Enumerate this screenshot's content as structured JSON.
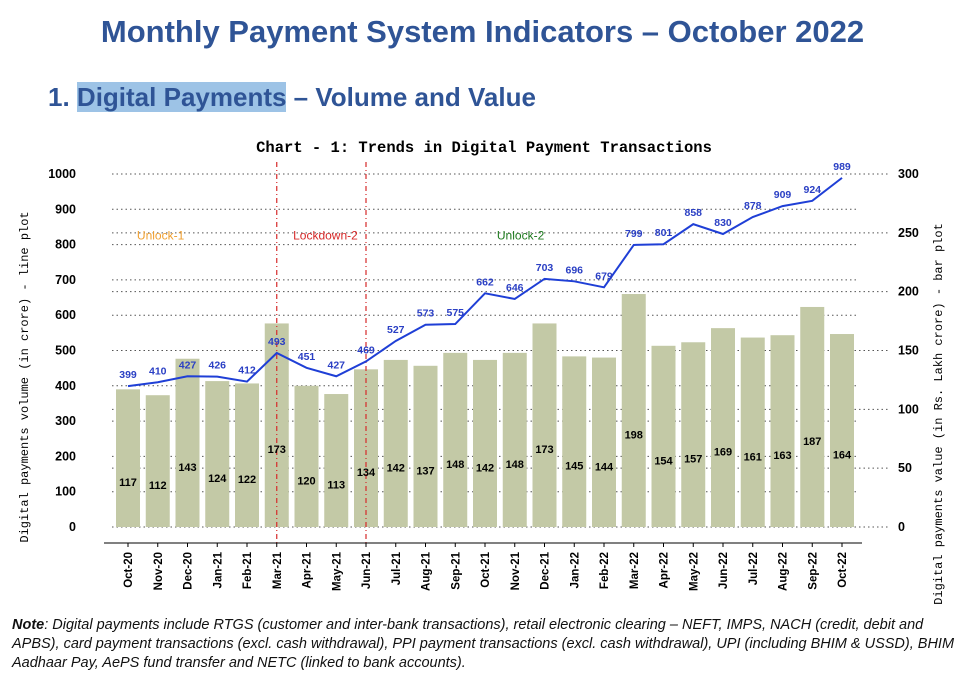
{
  "header": {
    "title": "Monthly Payment System Indicators – October 2022",
    "section_number": "1.",
    "section_title_part1": "Digital",
    "section_title_space": " ",
    "section_title_part2": "P",
    "section_title_part3": "ayments",
    "section_title_rest": " – Volume and Value"
  },
  "chart_data": {
    "type": "bar",
    "title": "Chart - 1: Trends in Digital Payment Transactions",
    "ylabel": "Digital payments volume (in crore) - line plot",
    "y2label": "Digital payments value (in Rs. Lakh crore) - bar plot",
    "ylim": [
      0,
      1000
    ],
    "y2lim": [
      0,
      300
    ],
    "y_ticks": [
      "0",
      "100",
      "200",
      "300",
      "400",
      "500",
      "600",
      "700",
      "800",
      "900",
      "1000"
    ],
    "y2_ticks": [
      "0",
      "50",
      "100",
      "150",
      "200",
      "250",
      "300"
    ],
    "grid": true,
    "categories": [
      "Oct-20",
      "Nov-20",
      "Dec-20",
      "Jan-21",
      "Feb-21",
      "Mar-21",
      "Apr-21",
      "May-21",
      "Jun-21",
      "Jul-21",
      "Aug-21",
      "Sep-21",
      "Oct-21",
      "Nov-21",
      "Dec-21",
      "Jan-22",
      "Feb-22",
      "Mar-22",
      "Apr-22",
      "May-22",
      "Jun-22",
      "Jul-22",
      "Aug-22",
      "Sep-22",
      "Oct-22"
    ],
    "series": [
      {
        "type": "line",
        "axis": "left",
        "color": "#1f3fd6",
        "values": [
          399,
          410,
          427,
          426,
          412,
          493,
          451,
          427,
          469,
          527,
          573,
          575,
          662,
          646,
          703,
          696,
          679,
          799,
          801,
          858,
          830,
          878,
          909,
          924,
          989
        ]
      },
      {
        "type": "bar",
        "axis": "right",
        "color": "#c3c9a6",
        "values": [
          117,
          112,
          143,
          124,
          122,
          173,
          120,
          113,
          134,
          142,
          137,
          148,
          142,
          148,
          173,
          145,
          144,
          198,
          154,
          157,
          169,
          161,
          163,
          187,
          164
        ]
      }
    ],
    "annotations": [
      {
        "text": "Unlock-1",
        "color": "#f0a030",
        "x_month_index": 0.3,
        "y": 815
      },
      {
        "text": "Lockdown-2",
        "color": "#d62a2a",
        "x_month_index": 5.55,
        "y": 815
      },
      {
        "text": "Unlock-2",
        "color": "#1e7a1e",
        "x_month_index": 12.4,
        "y": 815
      }
    ],
    "vlines": [
      {
        "x_month_index": 5,
        "color": "#d62a2a"
      },
      {
        "x_month_index": 8,
        "color": "#d62a2a"
      }
    ]
  },
  "note": {
    "label": "Note",
    "text": ": Digital payments include RTGS (customer and inter-bank transactions), retail electronic clearing – NEFT, IMPS, NACH (credit, debit and APBS), card payment transactions (excl. cash withdrawal), PPI payment transactions (excl. cash withdrawal), UPI (including BHIM & USSD), BHIM Aadhaar Pay, AePS fund transfer and NETC (linked to bank accounts)."
  }
}
